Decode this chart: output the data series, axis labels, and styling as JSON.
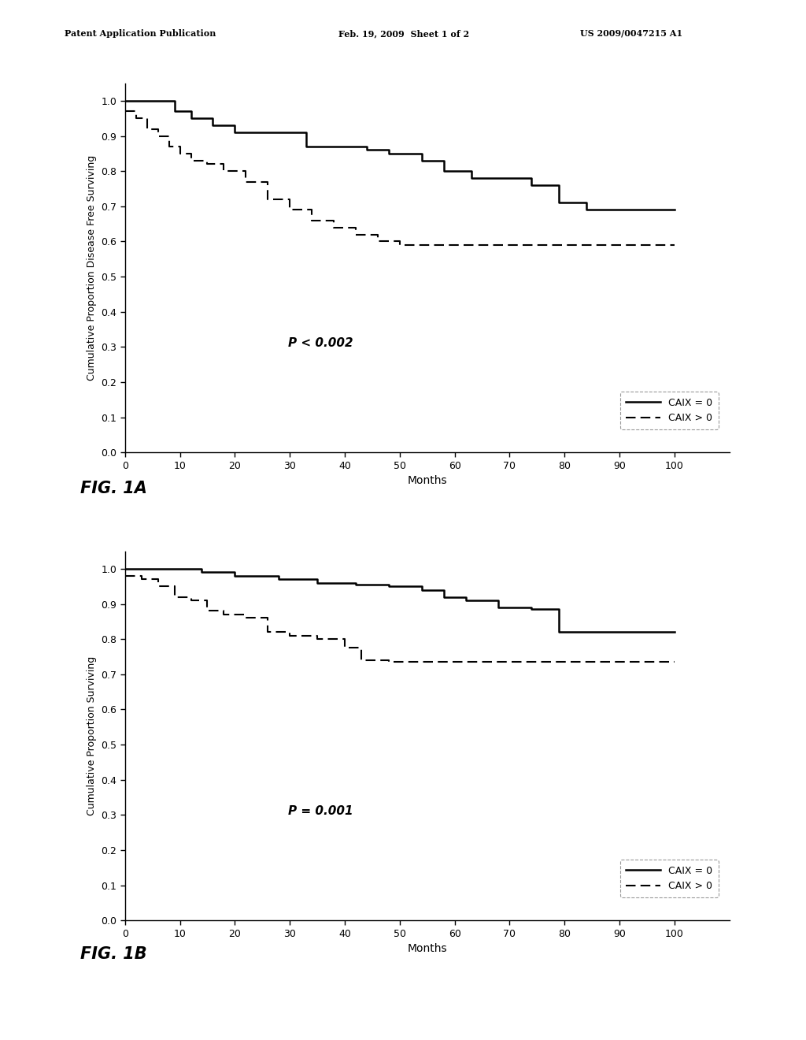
{
  "fig1a": {
    "ylabel": "Cumulative Proportion Disease Free Surviving",
    "xlabel": "Months",
    "pvalue": "P < 0.002",
    "ylim": [
      0.0,
      1.05
    ],
    "xlim": [
      0,
      110
    ],
    "xticks": [
      0,
      10,
      20,
      30,
      40,
      50,
      60,
      70,
      80,
      90,
      100
    ],
    "yticks": [
      0.0,
      0.1,
      0.2,
      0.3,
      0.4,
      0.5,
      0.6,
      0.7,
      0.8,
      0.9,
      1.0
    ],
    "solid_x": [
      0,
      6,
      9,
      12,
      16,
      20,
      33,
      44,
      48,
      54,
      58,
      63,
      74,
      79,
      84,
      100
    ],
    "solid_y": [
      1.0,
      1.0,
      0.97,
      0.95,
      0.93,
      0.91,
      0.87,
      0.86,
      0.85,
      0.83,
      0.8,
      0.78,
      0.76,
      0.71,
      0.69,
      0.69
    ],
    "dashed_x": [
      0,
      2,
      4,
      6,
      8,
      10,
      12,
      15,
      18,
      22,
      26,
      30,
      34,
      38,
      42,
      46,
      50,
      100
    ],
    "dashed_y": [
      0.97,
      0.95,
      0.92,
      0.9,
      0.87,
      0.85,
      0.83,
      0.82,
      0.8,
      0.77,
      0.72,
      0.69,
      0.66,
      0.64,
      0.62,
      0.6,
      0.59,
      0.59
    ],
    "legend_solid": "CAIX = 0",
    "legend_dashed": "CAIX > 0"
  },
  "fig1b": {
    "ylabel": "Cumulative Proportion Surviving",
    "xlabel": "Months",
    "pvalue": "P = 0.001",
    "ylim": [
      0.0,
      1.05
    ],
    "xlim": [
      0,
      110
    ],
    "xticks": [
      0,
      10,
      20,
      30,
      40,
      50,
      60,
      70,
      80,
      90,
      100
    ],
    "yticks": [
      0.0,
      0.1,
      0.2,
      0.3,
      0.4,
      0.5,
      0.6,
      0.7,
      0.8,
      0.9,
      1.0
    ],
    "solid_x": [
      0,
      8,
      14,
      20,
      28,
      35,
      42,
      48,
      54,
      58,
      62,
      68,
      74,
      79,
      100
    ],
    "solid_y": [
      1.0,
      1.0,
      0.99,
      0.98,
      0.97,
      0.96,
      0.955,
      0.95,
      0.94,
      0.92,
      0.91,
      0.89,
      0.885,
      0.82,
      0.82
    ],
    "dashed_x": [
      0,
      3,
      6,
      9,
      12,
      15,
      18,
      22,
      26,
      30,
      35,
      40,
      43,
      48,
      100
    ],
    "dashed_y": [
      0.98,
      0.97,
      0.95,
      0.92,
      0.91,
      0.88,
      0.87,
      0.86,
      0.82,
      0.81,
      0.8,
      0.775,
      0.74,
      0.735,
      0.735
    ],
    "legend_solid": "CAIX = 0",
    "legend_dashed": "CAIX > 0"
  },
  "header_left": "Patent Application Publication",
  "header_mid": "Feb. 19, 2009  Sheet 1 of 2",
  "header_right": "US 2009/0047215 A1",
  "background_color": "#ffffff",
  "line_color": "#000000",
  "text_color": "#000000"
}
